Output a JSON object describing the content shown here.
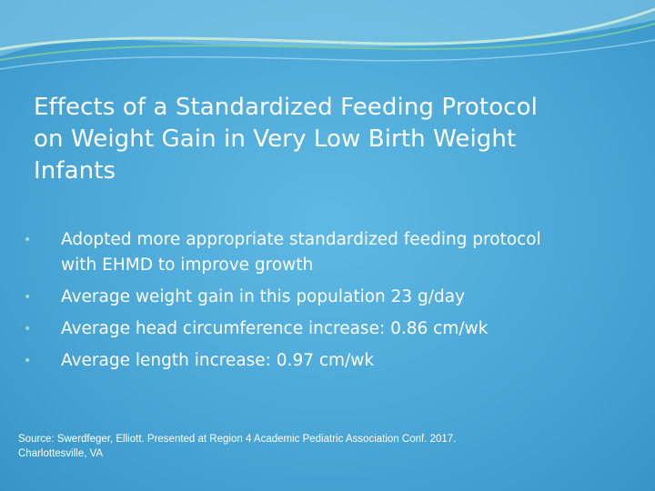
{
  "slide": {
    "title_lines": [
      "Effects of a Standardized Feeding Protocol",
      "on Weight Gain in Very Low Birth Weight",
      "Infants"
    ],
    "bullets": [
      {
        "lines": [
          "Adopted more appropriate standardized feeding protocol",
          "with EHMD to improve growth"
        ]
      },
      {
        "lines": [
          "Average weight gain in this population 23 g/day"
        ]
      },
      {
        "lines": [
          "Average head circumference increase: 0.86 cm/wk"
        ]
      },
      {
        "lines": [
          "Average length increase: 0.97 cm/wk"
        ]
      }
    ],
    "bullet_glyph": "•",
    "source_lines": [
      "Source: Swerdfeger, Elliott. Presented at Region 4 Academic Pediatric Association Conf. 2017.",
      "Charlottesville, VA"
    ]
  },
  "colors": {
    "background": "#4aa7d6",
    "text": "#ffffff",
    "bullet": "#9be0c8",
    "wave_light": "#cfeeda",
    "wave_green": "#7fcf9d"
  }
}
